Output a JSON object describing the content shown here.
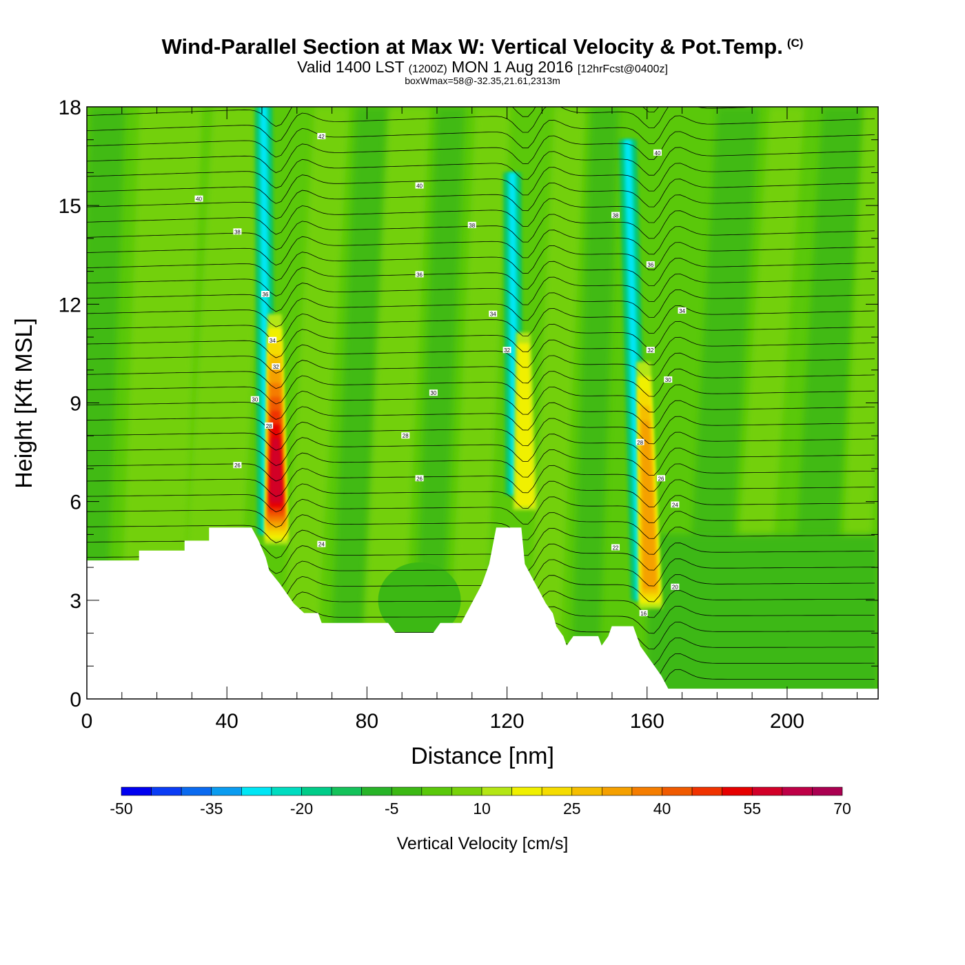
{
  "header": {
    "title": "Wind-Parallel Section at Max W: Vertical Velocity & Pot.Temp.",
    "copyright": "(C)",
    "valid_prefix": "Valid 1400 LST",
    "valid_zulu": "(1200Z)",
    "valid_date": "MON 1 Aug 2016",
    "forecast": "[12hrFcst@0400z]",
    "box_info": "boxWmax=58@-32.35,21.61,2313m"
  },
  "chart_data": {
    "type": "heatmap",
    "title": "Wind-Parallel Section at Max W: Vertical Velocity & Pot.Temp.",
    "xlabel": "Distance [nm]",
    "ylabel": "Height [Kft MSL]",
    "xlim": [
      0,
      226
    ],
    "ylim": [
      0,
      18
    ],
    "x_ticks": [
      0,
      40,
      80,
      120,
      160,
      200
    ],
    "y_ticks": [
      0,
      3,
      6,
      9,
      12,
      15,
      18
    ],
    "colorbar": {
      "title": "Vertical Velocity [cm/s]",
      "min": -50,
      "max": 70,
      "step": 5,
      "tick_labels": [
        "-50",
        "-35",
        "-20",
        "-5",
        "10",
        "25",
        "40",
        "55",
        "70"
      ],
      "colors": [
        "#0000f0",
        "#0a3cf5",
        "#0a6af0",
        "#0a9cf0",
        "#00e6f5",
        "#00dcc0",
        "#00cc88",
        "#14c25a",
        "#28b428",
        "#3cb814",
        "#5ac80a",
        "#78d20a",
        "#b4e614",
        "#f0f000",
        "#f5dc00",
        "#f5be00",
        "#f5a000",
        "#f57d00",
        "#f05a00",
        "#f03200",
        "#e60000",
        "#d20028",
        "#be0046",
        "#aa0050"
      ]
    },
    "updraft_bands": [
      {
        "name": "band-1",
        "bottom": [
          53,
          4.0
        ],
        "top": [
          52,
          18
        ],
        "max_w": 58
      },
      {
        "name": "band-2",
        "bottom": [
          124,
          5.2
        ],
        "top": [
          123,
          16
        ],
        "max_w": 15
      },
      {
        "name": "band-3",
        "bottom": [
          160,
          2.0
        ],
        "top": [
          156,
          17
        ],
        "max_w": 30
      }
    ],
    "terrain_kft": [
      [
        0,
        4.2
      ],
      [
        15,
        4.2
      ],
      [
        15,
        4.5
      ],
      [
        28,
        4.5
      ],
      [
        28,
        4.8
      ],
      [
        35,
        4.8
      ],
      [
        35,
        5.2
      ],
      [
        47,
        5.2
      ],
      [
        49,
        4.8
      ],
      [
        51,
        4.3
      ],
      [
        52,
        3.9
      ],
      [
        55,
        3.5
      ],
      [
        57,
        3.2
      ],
      [
        59,
        2.9
      ],
      [
        62,
        2.6
      ],
      [
        66,
        2.6
      ],
      [
        67,
        2.3
      ],
      [
        86,
        2.3
      ],
      [
        88,
        2.0
      ],
      [
        99,
        2.0
      ],
      [
        101,
        2.3
      ],
      [
        107,
        2.3
      ],
      [
        110,
        2.9
      ],
      [
        113,
        3.5
      ],
      [
        115,
        4.1
      ],
      [
        117,
        5.2
      ],
      [
        124,
        5.2
      ],
      [
        125,
        4.1
      ],
      [
        128,
        3.5
      ],
      [
        131,
        2.9
      ],
      [
        133,
        2.6
      ],
      [
        134,
        2.2
      ],
      [
        136,
        1.9
      ],
      [
        137,
        1.6
      ],
      [
        139,
        1.9
      ],
      [
        146,
        1.9
      ],
      [
        147,
        1.6
      ],
      [
        149,
        1.9
      ],
      [
        150,
        2.2
      ],
      [
        156,
        2.2
      ],
      [
        158,
        1.6
      ],
      [
        160,
        1.3
      ],
      [
        162,
        1.0
      ],
      [
        164,
        0.7
      ],
      [
        166,
        0.3
      ],
      [
        226,
        0.3
      ]
    ],
    "theta_contours_K": [
      16,
      18,
      20,
      22,
      24,
      26,
      28,
      30,
      32,
      34,
      36,
      38,
      40,
      42
    ],
    "theta_labels": [
      {
        "text": "42",
        "x": 67,
        "y": 17.1
      },
      {
        "text": "40",
        "x": 32,
        "y": 15.2
      },
      {
        "text": "40",
        "x": 95,
        "y": 15.6
      },
      {
        "text": "40",
        "x": 163,
        "y": 16.6
      },
      {
        "text": "38",
        "x": 43,
        "y": 14.2
      },
      {
        "text": "38",
        "x": 110,
        "y": 14.4
      },
      {
        "text": "38",
        "x": 151,
        "y": 14.7
      },
      {
        "text": "36",
        "x": 51,
        "y": 12.3
      },
      {
        "text": "36",
        "x": 95,
        "y": 12.9
      },
      {
        "text": "36",
        "x": 161,
        "y": 13.2
      },
      {
        "text": "34",
        "x": 53,
        "y": 10.9
      },
      {
        "text": "34",
        "x": 116,
        "y": 11.7
      },
      {
        "text": "34",
        "x": 170,
        "y": 11.8
      },
      {
        "text": "32",
        "x": 54,
        "y": 10.1
      },
      {
        "text": "32",
        "x": 120,
        "y": 10.6
      },
      {
        "text": "32",
        "x": 161,
        "y": 10.6
      },
      {
        "text": "30",
        "x": 48,
        "y": 9.1
      },
      {
        "text": "30",
        "x": 99,
        "y": 9.3
      },
      {
        "text": "30",
        "x": 166,
        "y": 9.7
      },
      {
        "text": "28",
        "x": 52,
        "y": 8.3
      },
      {
        "text": "28",
        "x": 91,
        "y": 8.0
      },
      {
        "text": "28",
        "x": 158,
        "y": 7.8
      },
      {
        "text": "26",
        "x": 43,
        "y": 7.1
      },
      {
        "text": "26",
        "x": 95,
        "y": 6.7
      },
      {
        "text": "26",
        "x": 164,
        "y": 6.7
      },
      {
        "text": "24",
        "x": 67,
        "y": 4.7
      },
      {
        "text": "24",
        "x": 168,
        "y": 5.9
      },
      {
        "text": "22",
        "x": 151,
        "y": 4.6
      },
      {
        "text": "20",
        "x": 168,
        "y": 3.4
      },
      {
        "text": "16",
        "x": 159,
        "y": 2.6
      }
    ]
  }
}
